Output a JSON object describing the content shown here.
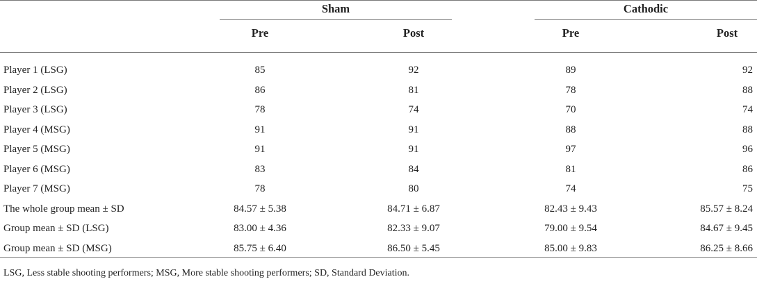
{
  "table": {
    "group_headers": [
      "Sham",
      "Cathodic"
    ],
    "sub_headers": [
      "Pre",
      "Post",
      "Pre",
      "Post"
    ],
    "rows": [
      {
        "label": "Player 1 (LSG)",
        "values": [
          "85",
          "92",
          "89",
          "92"
        ]
      },
      {
        "label": "Player 2 (LSG)",
        "values": [
          "86",
          "81",
          "78",
          "88"
        ]
      },
      {
        "label": "Player 3 (LSG)",
        "values": [
          "78",
          "74",
          "70",
          "74"
        ]
      },
      {
        "label": "Player 4 (MSG)",
        "values": [
          "91",
          "91",
          "88",
          "88"
        ]
      },
      {
        "label": "Player 5 (MSG)",
        "values": [
          "91",
          "91",
          "97",
          "96"
        ]
      },
      {
        "label": "Player 6 (MSG)",
        "values": [
          "83",
          "84",
          "81",
          "86"
        ]
      },
      {
        "label": "Player 7 (MSG)",
        "values": [
          "78",
          "80",
          "74",
          "75"
        ]
      },
      {
        "label": "The whole group mean ± SD",
        "values": [
          "84.57 ± 5.38",
          "84.71 ± 6.87",
          "82.43 ± 9.43",
          "85.57 ± 8.24"
        ]
      },
      {
        "label": "Group mean ± SD (LSG)",
        "values": [
          "83.00 ± 4.36",
          "82.33 ± 9.07",
          "79.00 ± 9.54",
          "84.67 ± 9.45"
        ]
      },
      {
        "label": "Group mean ± SD (MSG)",
        "values": [
          "85.75 ± 6.40",
          "86.50 ± 5.45",
          "85.00 ± 9.83",
          "86.25 ± 8.66"
        ]
      }
    ]
  },
  "footnote": "LSG, Less stable shooting performers; MSG, More stable shooting performers; SD, Standard Deviation."
}
